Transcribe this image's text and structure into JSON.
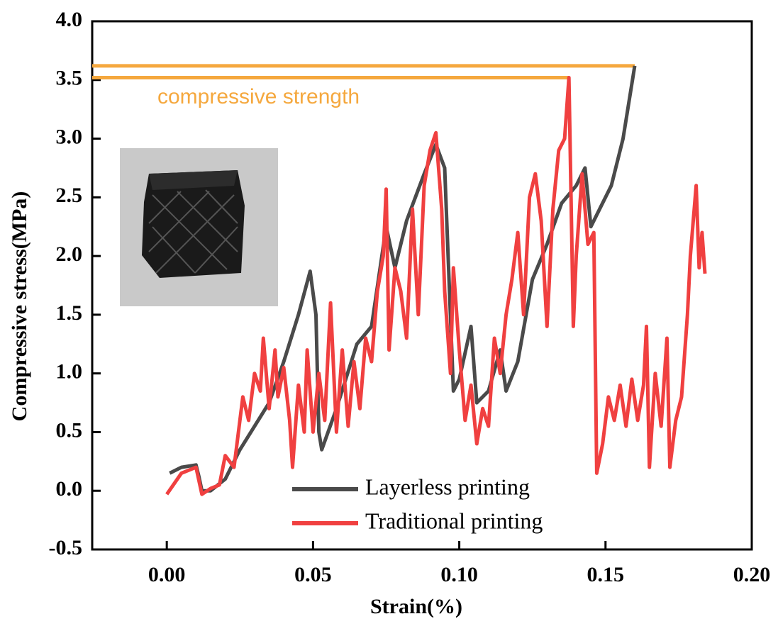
{
  "chart_data": {
    "type": "line",
    "xlabel": "Strain(%)",
    "ylabel": "Compressive stress(MPa)",
    "xlim": [
      -0.0255,
      0.2
    ],
    "ylim": [
      -0.5,
      4.0
    ],
    "xticks": [
      {
        "value": 0.0,
        "label": "0.00"
      },
      {
        "value": 0.05,
        "label": "0.05"
      },
      {
        "value": 0.1,
        "label": "0.10"
      },
      {
        "value": 0.15,
        "label": "0.15"
      },
      {
        "value": 0.2,
        "label": "0.20"
      }
    ],
    "yticks": [
      {
        "value": -0.5,
        "label": "-0.5"
      },
      {
        "value": 0.0,
        "label": "0.0"
      },
      {
        "value": 0.5,
        "label": "0.5"
      },
      {
        "value": 1.0,
        "label": "1.0"
      },
      {
        "value": 1.5,
        "label": "1.5"
      },
      {
        "value": 2.0,
        "label": "2.0"
      },
      {
        "value": 2.5,
        "label": "2.5"
      },
      {
        "value": 3.0,
        "label": "3.0"
      },
      {
        "value": 3.5,
        "label": "3.5"
      },
      {
        "value": 4.0,
        "label": "4.0"
      }
    ],
    "annotation": "compressive strength",
    "annotation_color": "#f5a83e",
    "reference_lines": [
      {
        "y": 3.62,
        "x": 0.16
      },
      {
        "y": 3.52,
        "x": 0.1375
      }
    ],
    "series": [
      {
        "name": "Layerless printing",
        "color": "#4a4a4a",
        "x": [
          0.001,
          0.005,
          0.01,
          0.011,
          0.012,
          0.015,
          0.02,
          0.025,
          0.03,
          0.035,
          0.04,
          0.045,
          0.049,
          0.051,
          0.052,
          0.053,
          0.058,
          0.065,
          0.07,
          0.075,
          0.078,
          0.082,
          0.088,
          0.092,
          0.095,
          0.098,
          0.1,
          0.104,
          0.106,
          0.11,
          0.114,
          0.116,
          0.12,
          0.125,
          0.13,
          0.135,
          0.14,
          0.143,
          0.145,
          0.148,
          0.152,
          0.156,
          0.16
        ],
        "values": [
          0.15,
          0.2,
          0.22,
          0.12,
          0.0,
          0.0,
          0.1,
          0.35,
          0.55,
          0.75,
          1.1,
          1.5,
          1.87,
          1.5,
          0.5,
          0.35,
          0.7,
          1.25,
          1.4,
          2.25,
          1.9,
          2.3,
          2.7,
          2.95,
          2.75,
          0.85,
          0.95,
          1.4,
          0.75,
          0.85,
          1.2,
          0.85,
          1.1,
          1.8,
          2.1,
          2.45,
          2.6,
          2.75,
          2.25,
          2.4,
          2.6,
          3.0,
          3.62
        ]
      },
      {
        "name": "Traditional printing",
        "color": "#f04040",
        "x": [
          0.0,
          0.005,
          0.01,
          0.012,
          0.015,
          0.018,
          0.02,
          0.023,
          0.026,
          0.028,
          0.03,
          0.032,
          0.033,
          0.035,
          0.037,
          0.038,
          0.04,
          0.042,
          0.043,
          0.045,
          0.047,
          0.048,
          0.05,
          0.052,
          0.054,
          0.056,
          0.058,
          0.06,
          0.062,
          0.064,
          0.066,
          0.068,
          0.07,
          0.072,
          0.074,
          0.075,
          0.076,
          0.078,
          0.08,
          0.082,
          0.084,
          0.086,
          0.088,
          0.09,
          0.092,
          0.094,
          0.095,
          0.097,
          0.098,
          0.1,
          0.102,
          0.104,
          0.106,
          0.108,
          0.11,
          0.112,
          0.114,
          0.116,
          0.118,
          0.12,
          0.122,
          0.124,
          0.126,
          0.128,
          0.13,
          0.132,
          0.134,
          0.136,
          0.1375,
          0.139,
          0.14,
          0.142,
          0.144,
          0.146,
          0.147,
          0.149,
          0.151,
          0.153,
          0.155,
          0.157,
          0.159,
          0.161,
          0.163,
          0.164,
          0.165,
          0.167,
          0.169,
          0.171,
          0.172,
          0.174,
          0.176,
          0.178,
          0.179,
          0.181,
          0.182,
          0.183,
          0.184
        ],
        "values": [
          -0.03,
          0.15,
          0.2,
          -0.03,
          0.02,
          0.05,
          0.3,
          0.2,
          0.8,
          0.6,
          1.0,
          0.85,
          1.3,
          0.7,
          1.2,
          0.8,
          1.05,
          0.6,
          0.2,
          0.9,
          0.5,
          1.2,
          0.5,
          1.0,
          0.6,
          1.6,
          0.5,
          1.2,
          0.55,
          1.1,
          0.7,
          1.3,
          1.1,
          1.7,
          2.0,
          2.57,
          1.2,
          1.9,
          1.7,
          1.3,
          2.4,
          1.5,
          2.6,
          2.9,
          3.05,
          2.4,
          1.7,
          1.0,
          1.9,
          1.2,
          0.6,
          0.9,
          0.4,
          0.7,
          0.55,
          1.3,
          1.0,
          1.5,
          1.8,
          2.2,
          1.5,
          2.5,
          2.7,
          2.3,
          1.4,
          2.4,
          2.9,
          3.0,
          3.52,
          1.4,
          2.0,
          2.7,
          2.1,
          2.2,
          0.15,
          0.4,
          0.8,
          0.6,
          0.9,
          0.55,
          0.95,
          0.6,
          0.9,
          1.4,
          0.2,
          1.0,
          0.55,
          1.3,
          0.2,
          0.6,
          0.8,
          1.5,
          2.0,
          2.6,
          1.9,
          2.2,
          1.85
        ]
      }
    ],
    "legend": "lower right"
  }
}
